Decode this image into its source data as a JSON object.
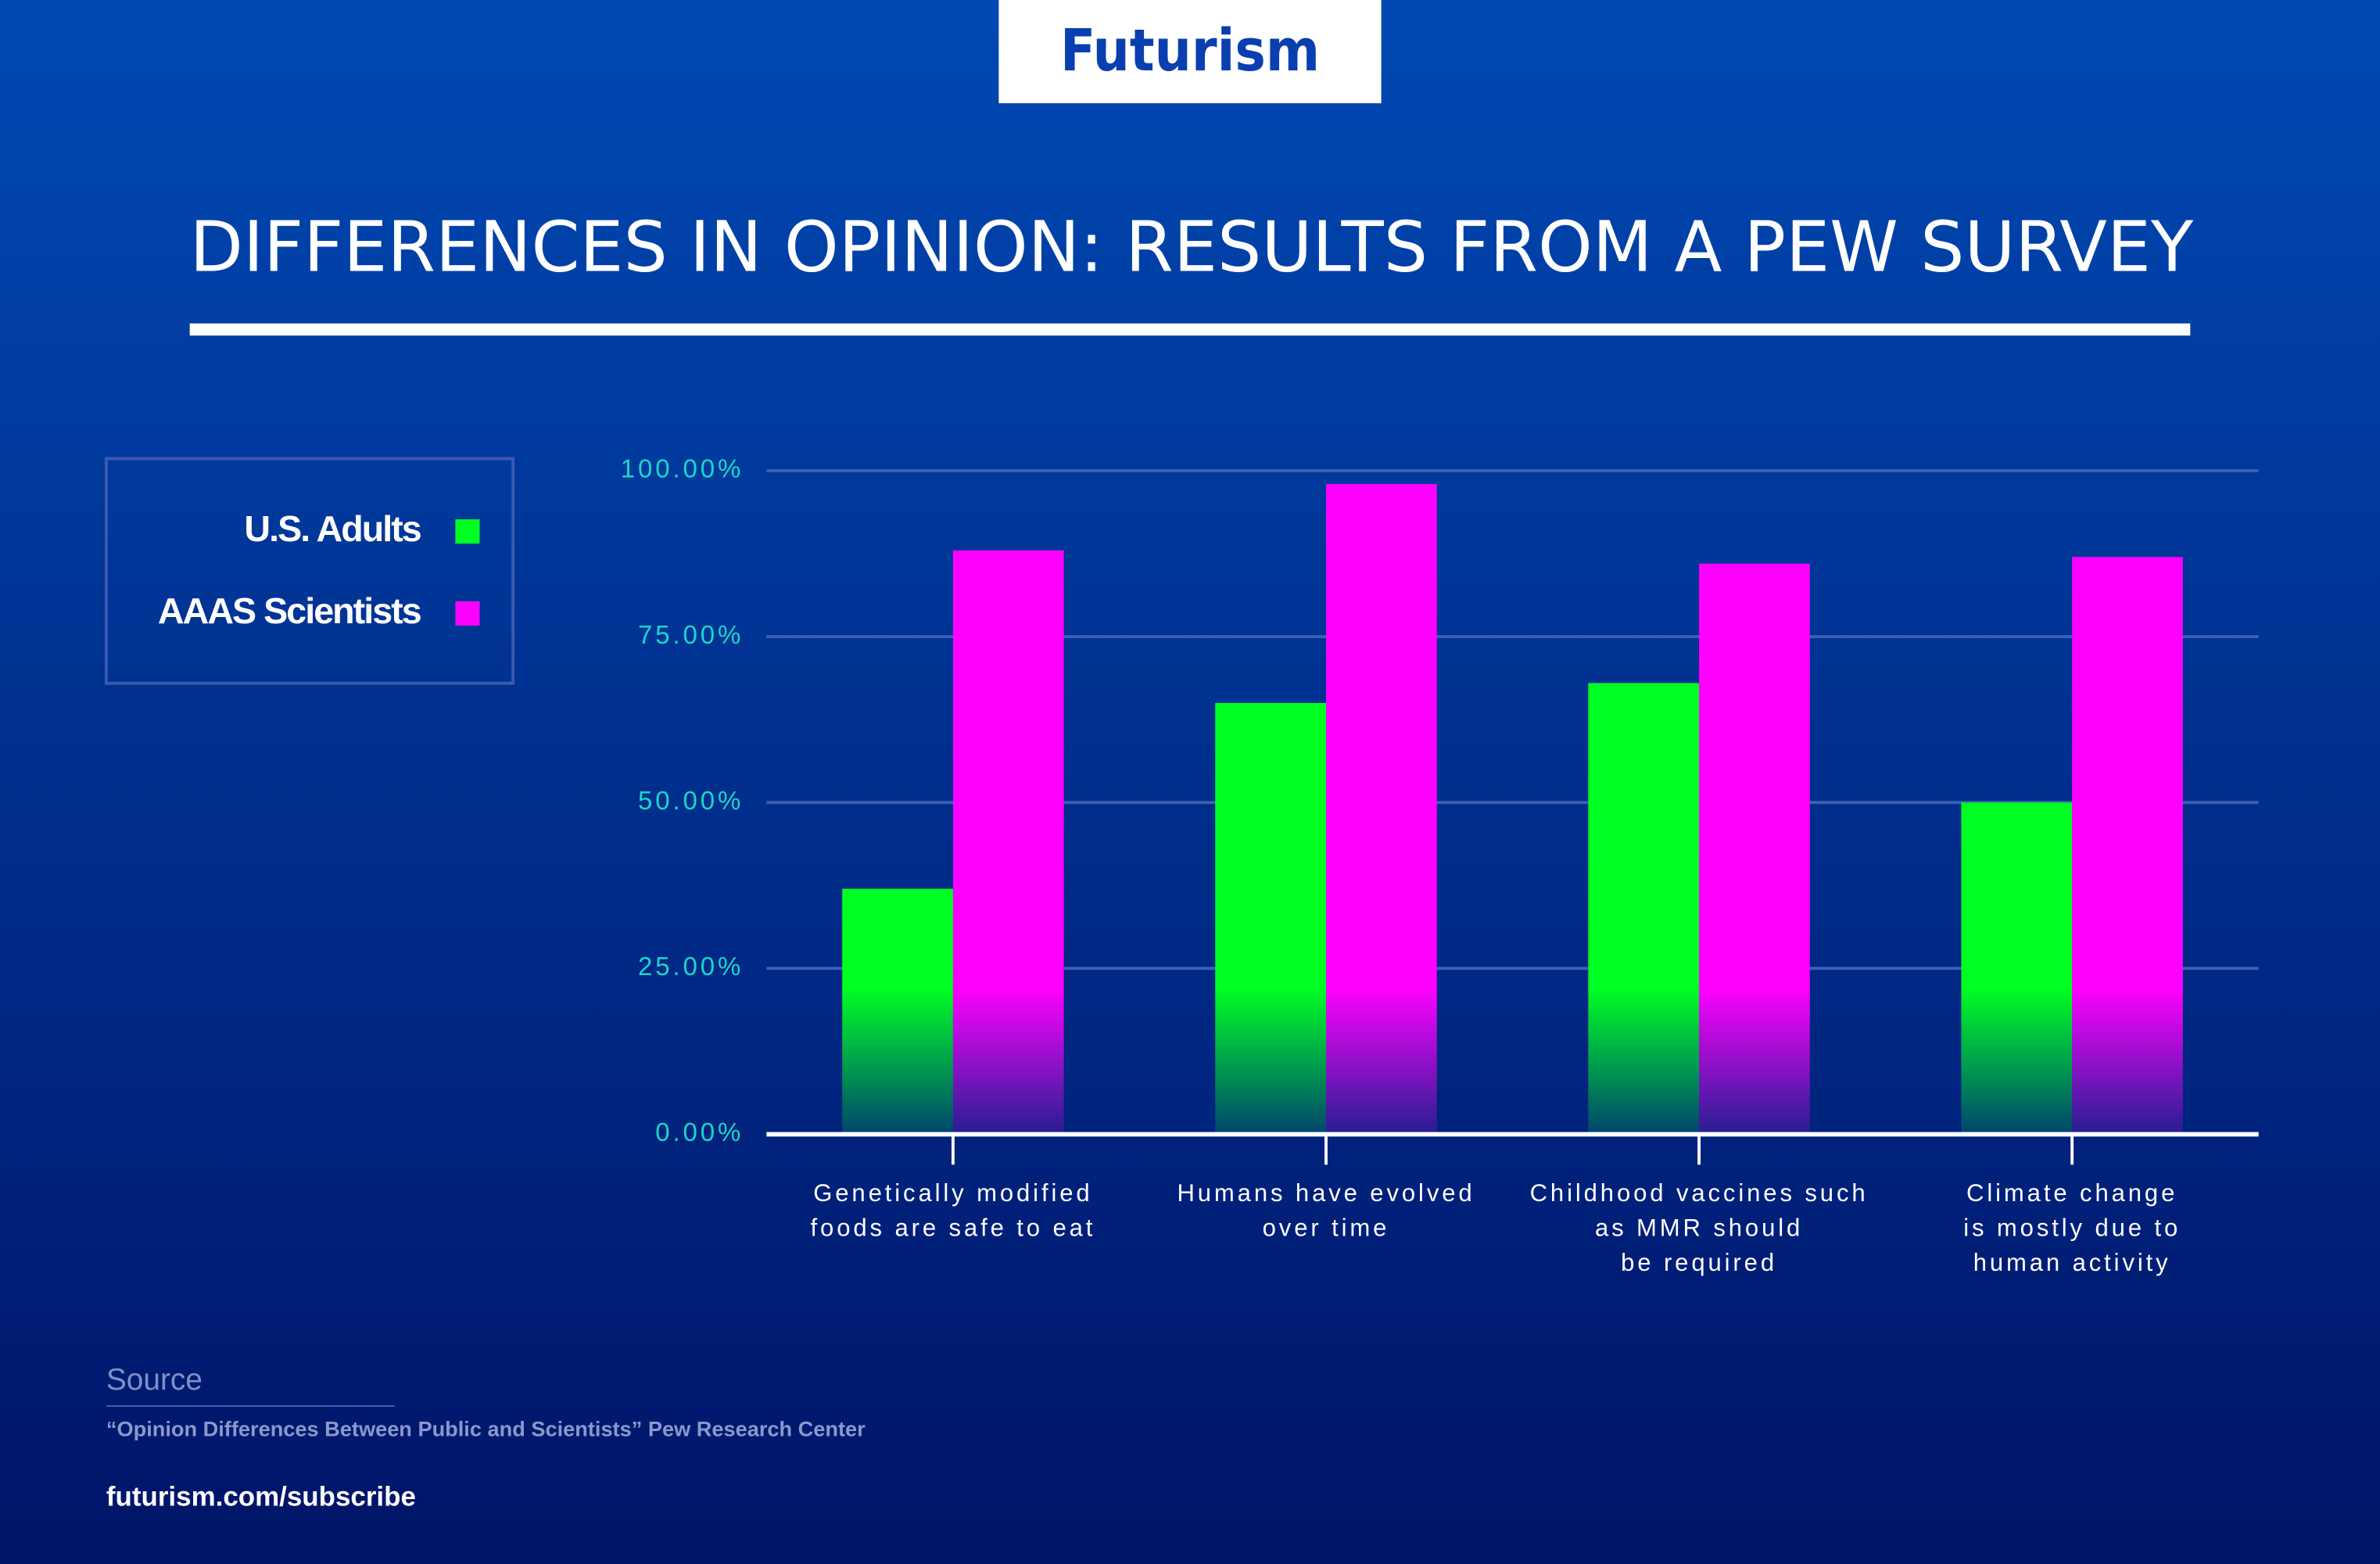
{
  "logo": "Futurism",
  "chart_data": {
    "type": "bar",
    "title": "DIFFERENCES IN OPINION: RESULTS FROM A PEW SURVEY",
    "categories": [
      "Genetically modified\nfoods are safe to eat",
      "Humans have evolved\nover time",
      "Childhood vaccines such\nas MMR should\nbe required",
      "Climate change\nis mostly due to\nhuman activity"
    ],
    "series": [
      {
        "name": "U.S. Adults",
        "color": "#00ff22",
        "values": [
          37,
          65,
          68,
          50
        ]
      },
      {
        "name": "AAAS Scientists",
        "color": "#ff00ff",
        "values": [
          88,
          98,
          86,
          87
        ]
      }
    ],
    "ylim": [
      0,
      100
    ],
    "yticks": [
      {
        "value": 0,
        "label": "0.00%"
      },
      {
        "value": 25,
        "label": "25.00%"
      },
      {
        "value": 50,
        "label": "50.00%"
      },
      {
        "value": 75,
        "label": "75.00%"
      },
      {
        "value": 100,
        "label": "100.00%"
      }
    ],
    "grid": true,
    "legend": "top-left"
  },
  "source": {
    "heading": "Source",
    "text": "“Opinion Differences Between Public and Scientists” Pew Research Center"
  },
  "footer": "futurism.com/subscribe"
}
